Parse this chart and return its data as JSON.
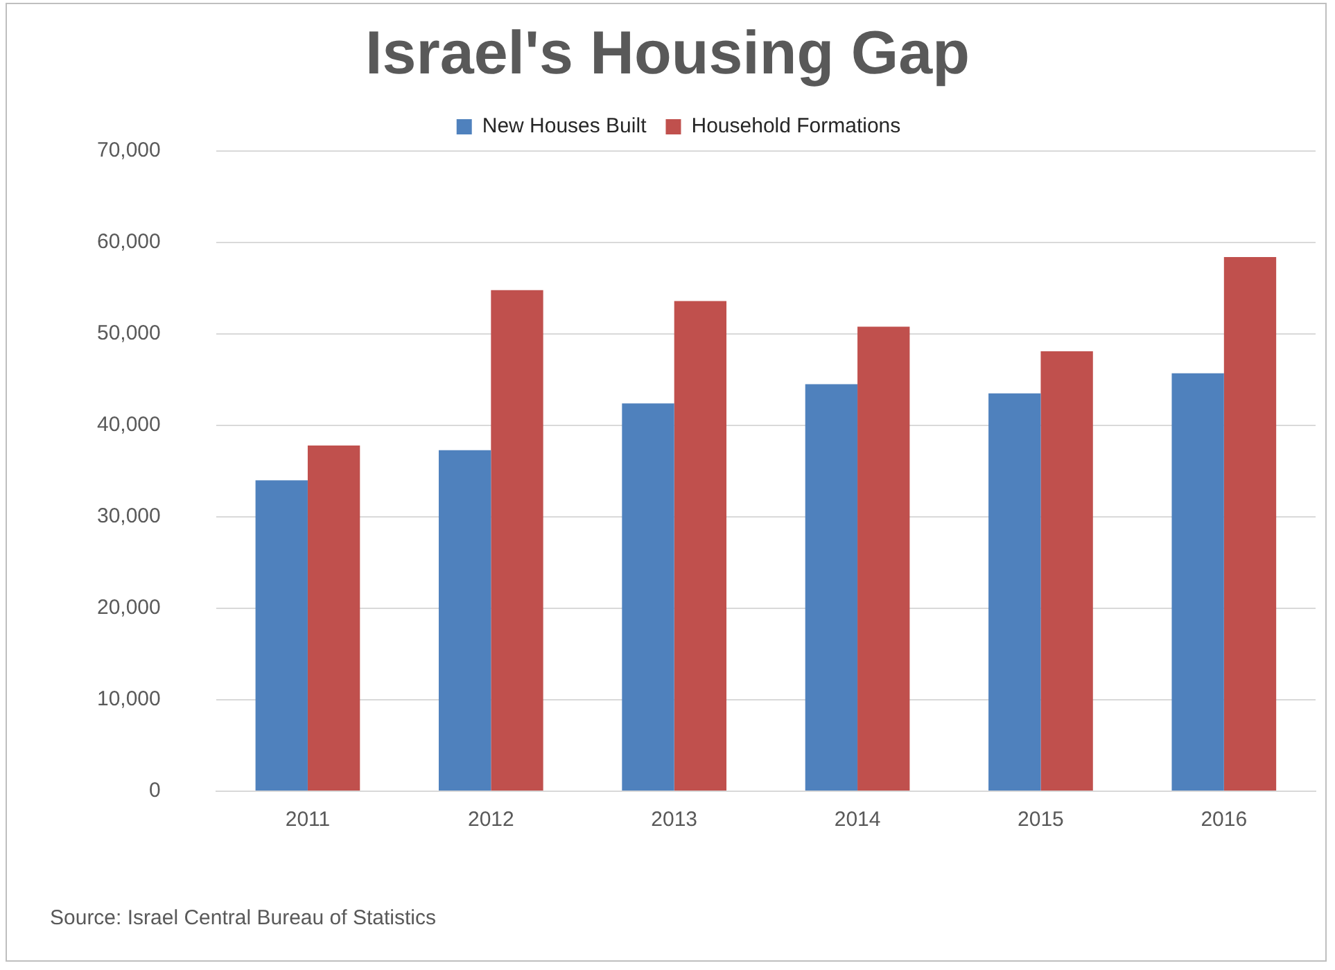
{
  "chart_data": {
    "type": "bar",
    "title": "Israel's Housing Gap",
    "categories": [
      "2011",
      "2012",
      "2013",
      "2014",
      "2015",
      "2016"
    ],
    "series": [
      {
        "name": "New Houses Built",
        "color": "#4f81bd",
        "values": [
          34000,
          37300,
          42400,
          44500,
          43500,
          45700
        ]
      },
      {
        "name": "Household Formations",
        "color": "#c0504d",
        "values": [
          37800,
          54800,
          53600,
          50800,
          48100,
          58400
        ]
      }
    ],
    "ylim": [
      0,
      70000
    ],
    "yticks": [
      {
        "value": 0,
        "label": "0"
      },
      {
        "value": 10000,
        "label": "10,000"
      },
      {
        "value": 20000,
        "label": "20,000"
      },
      {
        "value": 30000,
        "label": "30,000"
      },
      {
        "value": 40000,
        "label": "40,000"
      },
      {
        "value": 50000,
        "label": "50,000"
      },
      {
        "value": 60000,
        "label": "60,000"
      },
      {
        "value": 70000,
        "label": "70,000"
      }
    ],
    "grid": "y",
    "legend": "top",
    "annotations": [
      "Source:  Israel Central Bureau of Statistics"
    ]
  }
}
